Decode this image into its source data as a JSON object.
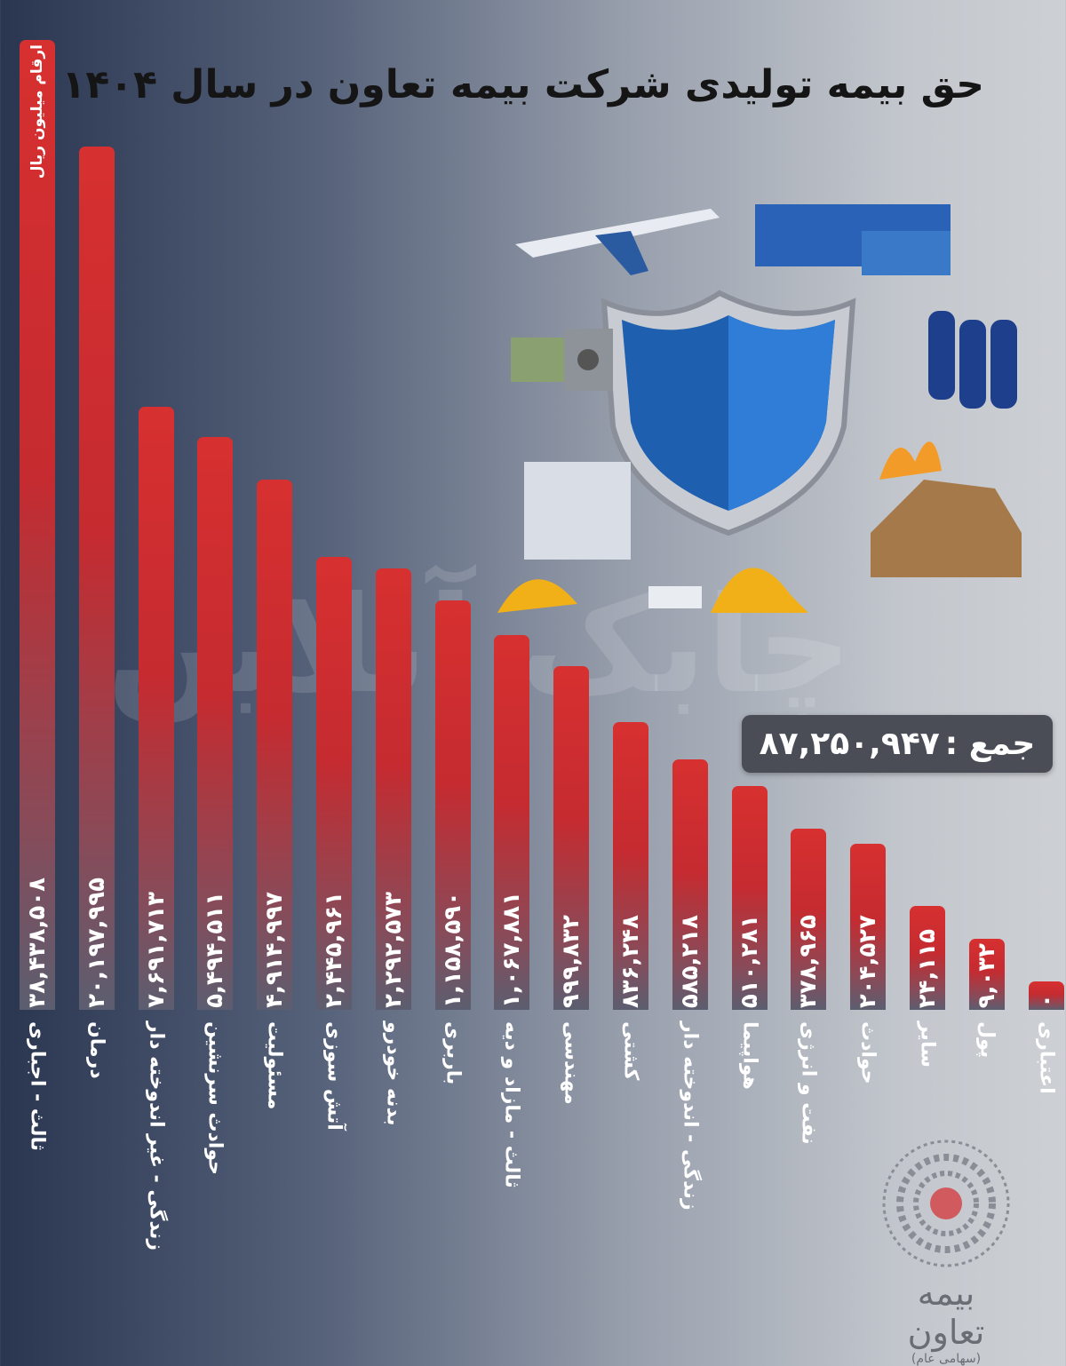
{
  "chart_data": {
    "type": "bar",
    "title": "حق بیمه تولیدی شرکت بیمه تعاون  در سال ۱۴۰۴",
    "unit_label": "ارقام میلیون ریال",
    "total_label": "جمع :",
    "total_value": "۸۷,۲۵۰,۹۴۷",
    "total": 87250947,
    "categories": [
      "ثالث - اجباری",
      "درمان",
      "زندگی - غیر اندوخته دار",
      "حوادث سرنشین",
      "مسئولیت",
      "آتش سوزی",
      "بدنه خودرو",
      "باربری",
      "ثالث - مازاد و دیه",
      "مهندسی",
      "کشتی",
      "زندگی - اندوخته دار",
      "هواپیما",
      "نفت و انرژی",
      "حوادث",
      "سایر",
      "پول",
      "اعتباری"
    ],
    "values": [
      38438508,
      20197995,
      7691713,
      5494511,
      4914997,
      2445961,
      2292573,
      1158590,
      1067881,
      999832,
      836248,
      585218,
      510281,
      378965,
      204527,
      24115,
      9032,
      0
    ],
    "data_labels": [
      "۳۸,۴۳۸,۵۰۸",
      "۲۰,۱۹۷,۹۹۵",
      "۷,۶۹۱,۷۱۳",
      "۵,۴۹۴,۵۱۱",
      "۴,۹۱۴,۹۹۷",
      "۲,۴۴۵,۹۶۱",
      "۲,۲۹۲,۵۷۳",
      "۱,۱۵۸,۵۹۰",
      "۱,۰۶۷,۸۸۱",
      "۹۹۹,۸۳۲",
      "۸۳۶,۲۴۸",
      "۵۸۵,۲۱۸",
      "۵۱۰,۲۸۱",
      "۳۷۸,۹۶۵",
      "۲۰۴,۵۲۷",
      "۲۴,۱۱۵",
      "۹,۰۳۲",
      "۰"
    ],
    "bar_color": "#d32f2f",
    "grid": false
  },
  "watermark": "چابک آنلاین",
  "logo": {
    "name": "بیمه تعاون",
    "sub": "(سهامی عام)"
  }
}
